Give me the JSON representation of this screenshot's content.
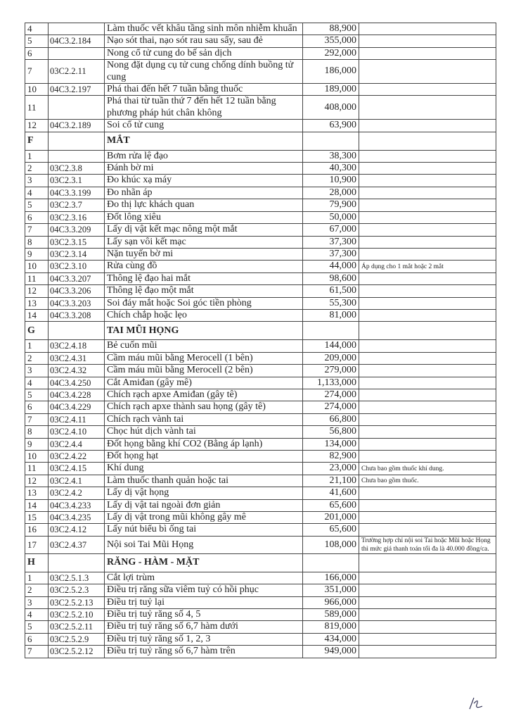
{
  "table": {
    "rows": [
      {
        "no": "4",
        "name": "Làm thuốc vết khâu tầng sinh môn nhiễm khuẩn",
        "price": "88,900"
      },
      {
        "no": "5",
        "code": "04C3.2.184",
        "name": "Nạo sót thai, nạo sót rau sau sẩy, sau đẻ",
        "price": "355,000"
      },
      {
        "no": "6",
        "name": "Nong cổ tử cung do bế sản dịch",
        "price": "292,000"
      },
      {
        "no": "7",
        "code": "03C2.2.11",
        "name": "Nong đặt dụng cụ tử cung chống dính buồng tử cung",
        "price": "186,000"
      },
      {
        "no": "10",
        "code": "04C3.2.197",
        "name": "Phá thai đến hết 7 tuần bằng thuốc",
        "price": "189,000"
      },
      {
        "no": "11",
        "name": "Phá thai từ tuần thứ 7 đến hết 12 tuần bằng phương pháp hút chân không",
        "price": "408,000"
      },
      {
        "no": "12",
        "code": "04C3.2.189",
        "name": "Soi cổ tử cung",
        "price": "63,900"
      },
      {
        "no": "F",
        "section": "MẮT"
      },
      {
        "no": "1",
        "name": "Bơm rửa lệ đạo",
        "price": "38,300"
      },
      {
        "no": "2",
        "code": "03C2.3.8",
        "name": "Đánh bờ mi",
        "price": "40,300"
      },
      {
        "no": "3",
        "code": "03C2.3.1",
        "name": "Đo khúc xạ máy",
        "price": "10,900"
      },
      {
        "no": "4",
        "code": "04C3.3.199",
        "name": "Đo nhãn áp",
        "price": "28,000"
      },
      {
        "no": "5",
        "code": "03C2.3.7",
        "name": "Đo thị lực khách quan",
        "price": "79,900"
      },
      {
        "no": "6",
        "code": "03C2.3.16",
        "name": "Đốt lông xiêu",
        "price": "50,000"
      },
      {
        "no": "7",
        "code": "04C3.3.209",
        "name": "Lấy dị vật kết mạc nông một mắt",
        "price": "67,000"
      },
      {
        "no": "8",
        "code": "03C2.3.15",
        "name": "Lấy sạn vôi kết mạc",
        "price": "37,300"
      },
      {
        "no": "9",
        "code": "03C2.3.14",
        "name": "Nặn tuyến bờ mi",
        "price": "37,300"
      },
      {
        "no": "10",
        "code": "03C2.3.10",
        "name": "Rửa cùng đồ",
        "price": "44,000",
        "note": "Áp dụng cho 1 mắt hoặc 2 mắt"
      },
      {
        "no": "11",
        "code": "04C3.3.207",
        "name": "Thông lệ đạo hai mắt",
        "price": "98,600"
      },
      {
        "no": "12",
        "code": "04C3.3.206",
        "name": "Thông lệ đạo một mắt",
        "price": "61,500"
      },
      {
        "no": "13",
        "code": "04C3.3.203",
        "name": "Soi đáy mắt hoặc Soi góc tiền phòng",
        "price": "55,300"
      },
      {
        "no": "14",
        "code": "04C3.3.208",
        "name": "Chích chắp hoặc lẹo",
        "price": "81,000"
      },
      {
        "no": "G",
        "section": "TAI MŨI HỌNG"
      },
      {
        "no": "1",
        "code": "03C2.4.18",
        "name": "Bẻ cuốn mũi",
        "price": "144,000"
      },
      {
        "no": "2",
        "code": "03C2.4.31",
        "name": "Cầm máu mũi bằng Merocell (1 bên)",
        "price": "209,000"
      },
      {
        "no": "3",
        "code": "03C2.4.32",
        "name": "Cầm máu mũi bằng Merocell (2 bên)",
        "price": "279,000"
      },
      {
        "no": "4",
        "code": "04C3.4.250",
        "name": "Cắt Amiđan (gây mê)",
        "price": "1,133,000"
      },
      {
        "no": "5",
        "code": "04C3.4.228",
        "name": "Chích rạch apxe Amiđan (gây tê)",
        "price": "274,000"
      },
      {
        "no": "6",
        "code": "04C3.4.229",
        "name": "Chích rạch apxe thành sau họng (gây tê)",
        "price": "274,000"
      },
      {
        "no": "7",
        "code": "03C2.4.11",
        "name": "Chích rạch vành tai",
        "price": "66,800"
      },
      {
        "no": "8",
        "code": "03C2.4.10",
        "name": "Chọc hút dịch vành tai",
        "price": "56,800"
      },
      {
        "no": "9",
        "code": "03C2.4.4",
        "name": "Đốt họng bằng khí CO2 (Bằng áp lạnh)",
        "price": "134,000"
      },
      {
        "no": "10",
        "code": "03C2.4.22",
        "name": "Đốt họng hạt",
        "price": "82,900"
      },
      {
        "no": "11",
        "code": "03C2.4.15",
        "name": "Khí dung",
        "price": "23,000",
        "note": "Chưa bao gồm thuốc khí dung."
      },
      {
        "no": "12",
        "code": "03C2.4.1",
        "name": "Làm thuốc thanh quản hoặc tai",
        "price": "21,100",
        "note": "Chưa bao gồm thuốc."
      },
      {
        "no": "13",
        "code": "03C2.4.2",
        "name": "Lấy dị vật họng",
        "price": "41,600"
      },
      {
        "no": "14",
        "code": "04C3.4.233",
        "name": "Lấy dị vật tai ngoài đơn giản",
        "price": "65,600"
      },
      {
        "no": "15",
        "code": "04C3.4.235",
        "name": "Lấy dị vật trong mũi không gây mê",
        "price": "201,000"
      },
      {
        "no": "16",
        "code": "03C2.4.12",
        "name": "Lấy nút biểu bì ống tai",
        "price": "65,600"
      },
      {
        "no": "17",
        "code": "03C2.4.37",
        "name": "Nội soi Tai Mũi Họng",
        "price": "108,000",
        "note": "Trường hợp chỉ nội soi Tai hoặc Mũi hoặc Họng thì mức giá thanh toán tối đa là 40.000 đồng/ca."
      },
      {
        "no": "H",
        "section": "RĂNG - HÀM - MẶT"
      },
      {
        "no": "1",
        "code": "03C2.5.1.3",
        "name": "Cắt lợi trùm",
        "price": "166,000"
      },
      {
        "no": "2",
        "code": "03C2.5.2.3",
        "name": "Điều trị răng sữa viêm tuỷ có hồi phục",
        "price": "351,000"
      },
      {
        "no": "3",
        "code": "03C2.5.2.13",
        "name": "Điều trị tuỷ lại",
        "price": "966,000"
      },
      {
        "no": "4",
        "code": "03C2.5.2.10",
        "name": "Điều trị tuỷ răng số 4, 5",
        "price": "589,000"
      },
      {
        "no": "5",
        "code": "03C2.5.2.11",
        "name": "Điều trị tuỷ răng số 6,7 hàm dưới",
        "price": "819,000"
      },
      {
        "no": "6",
        "code": "03C2.5.2.9",
        "name": "Điều trị tuỷ răng số 1, 2, 3",
        "price": "434,000"
      },
      {
        "no": "7",
        "code": "03C2.5.2.12",
        "name": "Điều trị tuỷ răng số 6,7 hàm trên",
        "price": "949,000"
      }
    ]
  }
}
